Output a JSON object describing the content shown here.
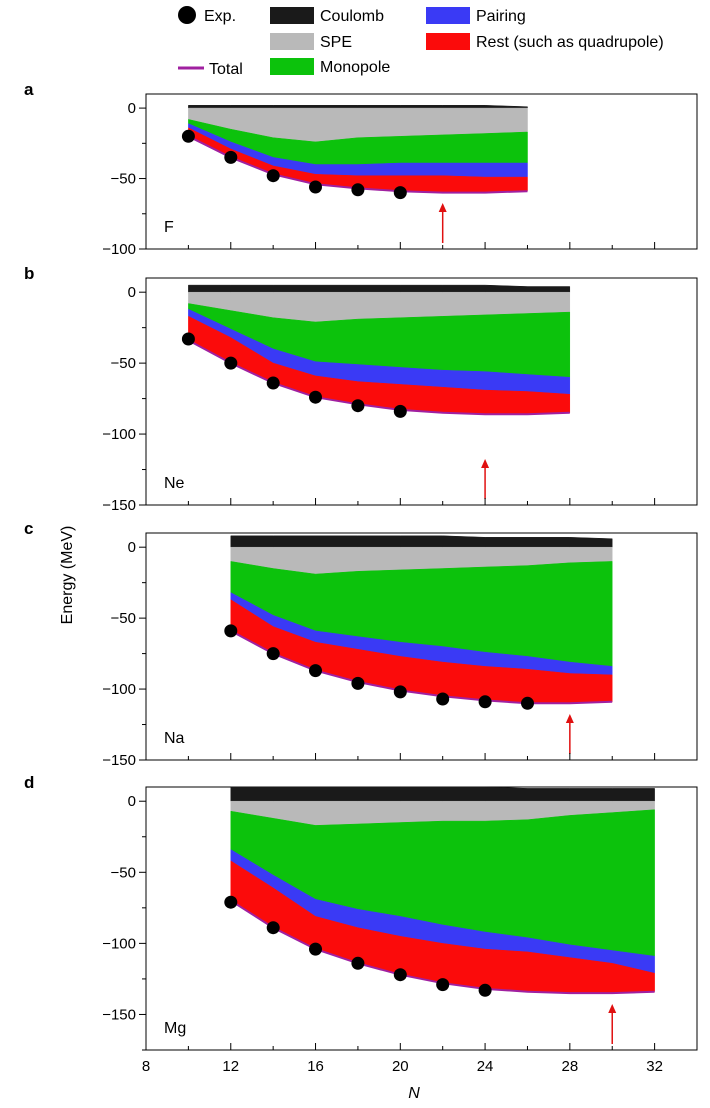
{
  "legend": {
    "items": [
      {
        "label": "Exp.",
        "kind": "marker",
        "color": "#000000",
        "icon": "dot-icon"
      },
      {
        "label": "Coulomb",
        "kind": "rect",
        "color": "#1a1a1a",
        "icon": "swatch-icon"
      },
      {
        "label": "Pairing",
        "kind": "rect",
        "color": "#3a3af5",
        "icon": "swatch-icon"
      },
      {
        "label": "SPE",
        "kind": "rect",
        "color": "#b9b9b9",
        "icon": "swatch-icon"
      },
      {
        "label": "Rest (such as quadrupole)",
        "kind": "rect",
        "color": "#fb0b0b",
        "icon": "swatch-icon"
      },
      {
        "label": "Total",
        "kind": "line",
        "color": "#a020a0",
        "icon": "line-icon"
      },
      {
        "label": "Monopole",
        "kind": "rect",
        "color": "#0cc20c",
        "icon": "swatch-icon"
      }
    ]
  },
  "axes": {
    "xlabel": "N",
    "ylabel": "Energy (MeV)",
    "xticks": [
      8,
      12,
      16,
      20,
      24,
      28,
      32
    ],
    "xlim": [
      8,
      34
    ]
  },
  "colors": {
    "coulomb": "#1a1a1a",
    "spe": "#b9b9b9",
    "monopole": "#0cc20c",
    "pairing": "#3a3af5",
    "rest": "#fb0b0b",
    "total": "#a020a0",
    "arrow": "#e01010",
    "exp": "#000000"
  },
  "chart_data": [
    {
      "type": "area",
      "panel": "a",
      "element": "F",
      "ylim": [
        -100,
        10
      ],
      "yticks": [
        0,
        -50,
        -100
      ],
      "drip_line_arrow_N": 22,
      "x": [
        10,
        12,
        14,
        16,
        18,
        20,
        22,
        24,
        26
      ],
      "boundaries": {
        "coulomb_top": [
          2,
          2,
          2,
          2,
          2,
          2,
          2,
          2,
          1
        ],
        "coulomb_bottom": [
          0,
          0,
          0,
          0,
          0,
          0,
          0,
          0,
          0
        ],
        "spe_bottom": [
          -8,
          -15,
          -21,
          -24,
          -21,
          -20,
          -19,
          -18,
          -17
        ],
        "monopole_bottom": [
          -11,
          -24,
          -35,
          -40,
          -40,
          -39,
          -39,
          -39,
          -39
        ],
        "pairing_bottom": [
          -14,
          -29,
          -41,
          -47,
          -48,
          -48,
          -48,
          -49,
          -49
        ],
        "rest_bottom": [
          -20,
          -35,
          -47,
          -54,
          -57,
          -59,
          -60,
          -60,
          -59
        ]
      },
      "series": [
        {
          "name": "Total",
          "values": [
            -20,
            -35,
            -47,
            -54,
            -57,
            -59,
            -60,
            -60,
            -59
          ]
        },
        {
          "name": "Exp.",
          "x": [
            10,
            12,
            14,
            16,
            18,
            20
          ],
          "values": [
            -20,
            -35,
            -48,
            -56,
            -58,
            -60
          ]
        }
      ]
    },
    {
      "type": "area",
      "panel": "b",
      "element": "Ne",
      "ylim": [
        -150,
        10
      ],
      "yticks": [
        0,
        -50,
        -100,
        -150
      ],
      "drip_line_arrow_N": 24,
      "x": [
        10,
        12,
        14,
        16,
        18,
        20,
        22,
        24,
        26,
        28
      ],
      "boundaries": {
        "coulomb_top": [
          5,
          5,
          5,
          5,
          5,
          5,
          5,
          5,
          4,
          4
        ],
        "coulomb_bottom": [
          0,
          0,
          0,
          0,
          0,
          0,
          0,
          0,
          0,
          0
        ],
        "spe_bottom": [
          -8,
          -13,
          -18,
          -21,
          -19,
          -18,
          -17,
          -16,
          -15,
          -14
        ],
        "monopole_bottom": [
          -12,
          -26,
          -40,
          -49,
          -51,
          -53,
          -55,
          -56,
          -58,
          -60
        ],
        "pairing_bottom": [
          -17,
          -32,
          -50,
          -59,
          -63,
          -65,
          -67,
          -69,
          -70,
          -72
        ],
        "rest_bottom": [
          -34,
          -50,
          -64,
          -74,
          -79,
          -83,
          -85,
          -86,
          -86,
          -85
        ]
      },
      "series": [
        {
          "name": "Total",
          "values": [
            -34,
            -50,
            -64,
            -74,
            -79,
            -83,
            -85,
            -86,
            -86,
            -85
          ]
        },
        {
          "name": "Exp.",
          "x": [
            10,
            12,
            14,
            16,
            18,
            20
          ],
          "values": [
            -33,
            -50,
            -64,
            -74,
            -80,
            -84
          ]
        }
      ]
    },
    {
      "type": "area",
      "panel": "c",
      "element": "Na",
      "ylim": [
        -150,
        10
      ],
      "yticks": [
        0,
        -50,
        -100,
        -150
      ],
      "drip_line_arrow_N": 28,
      "x": [
        12,
        14,
        16,
        18,
        20,
        22,
        24,
        26,
        28,
        30
      ],
      "boundaries": {
        "coulomb_top": [
          8,
          8,
          8,
          8,
          8,
          8,
          7,
          7,
          7,
          6
        ],
        "coulomb_bottom": [
          0,
          0,
          0,
          0,
          0,
          0,
          0,
          0,
          0,
          0
        ],
        "spe_bottom": [
          -10,
          -15,
          -19,
          -17,
          -16,
          -15,
          -14,
          -13,
          -11,
          -10
        ],
        "monopole_bottom": [
          -32,
          -48,
          -59,
          -63,
          -67,
          -70,
          -74,
          -77,
          -81,
          -84
        ],
        "pairing_bottom": [
          -37,
          -56,
          -67,
          -72,
          -77,
          -81,
          -84,
          -86,
          -89,
          -90
        ],
        "rest_bottom": [
          -59,
          -75,
          -87,
          -95,
          -101,
          -105,
          -108,
          -110,
          -110,
          -109
        ]
      },
      "series": [
        {
          "name": "Total",
          "values": [
            -59,
            -75,
            -87,
            -95,
            -101,
            -105,
            -108,
            -110,
            -110,
            -109
          ]
        },
        {
          "name": "Exp.",
          "x": [
            12,
            14,
            16,
            18,
            20,
            22,
            24,
            26
          ],
          "values": [
            -59,
            -75,
            -87,
            -96,
            -102,
            -107,
            -109,
            -110
          ]
        }
      ]
    },
    {
      "type": "area",
      "panel": "d",
      "element": "Mg",
      "ylim": [
        -175,
        10
      ],
      "yticks": [
        0,
        -50,
        -100,
        -150
      ],
      "drip_line_arrow_N": 30,
      "x": [
        12,
        14,
        16,
        18,
        20,
        22,
        24,
        26,
        28,
        30,
        32
      ],
      "boundaries": {
        "coulomb_top": [
          10,
          10,
          10,
          10,
          10,
          10,
          10,
          9,
          9,
          9,
          9
        ],
        "coulomb_bottom": [
          0,
          0,
          0,
          0,
          0,
          0,
          0,
          0,
          0,
          0,
          0
        ],
        "spe_bottom": [
          -7,
          -12,
          -17,
          -16,
          -15,
          -14,
          -14,
          -13,
          -10,
          -8,
          -6
        ],
        "monopole_bottom": [
          -34,
          -52,
          -69,
          -76,
          -81,
          -87,
          -92,
          -96,
          -101,
          -105,
          -109
        ],
        "pairing_bottom": [
          -42,
          -61,
          -81,
          -89,
          -95,
          -100,
          -104,
          -106,
          -110,
          -114,
          -121
        ],
        "rest_bottom": [
          -70,
          -89,
          -104,
          -114,
          -122,
          -128,
          -132,
          -134,
          -135,
          -135,
          -134
        ]
      },
      "series": [
        {
          "name": "Total",
          "values": [
            -70,
            -89,
            -104,
            -114,
            -122,
            -128,
            -132,
            -134,
            -135,
            -135,
            -134
          ]
        },
        {
          "name": "Exp.",
          "x": [
            12,
            14,
            16,
            18,
            20,
            22,
            24
          ],
          "values": [
            -71,
            -89,
            -104,
            -114,
            -122,
            -129,
            -133
          ]
        }
      ]
    }
  ]
}
